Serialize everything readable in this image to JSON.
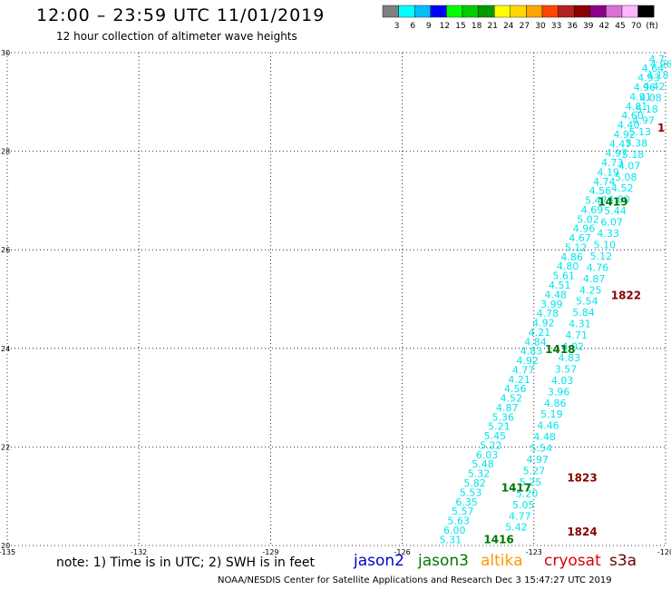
{
  "header": {
    "title": "12:00 – 23:59 UTC 11/01/2019",
    "subtitle": "12 hour collection of altimeter wave heights"
  },
  "colorbar": {
    "labels": [
      "3",
      "6",
      "9",
      "12",
      "15",
      "18",
      "21",
      "24",
      "27",
      "30",
      "33",
      "36",
      "39",
      "42",
      "45",
      "70",
      "(ft)"
    ],
    "colors": [
      "#7f7f7f",
      "#00ffff",
      "#00bfff",
      "#0000ff",
      "#00ff00",
      "#00cc00",
      "#009900",
      "#ffff00",
      "#ffd700",
      "#ffa500",
      "#ff4500",
      "#b22222",
      "#8b0000",
      "#8b008b",
      "#da70d6",
      "#ffb6ff",
      "#000000"
    ]
  },
  "footer": {
    "note": "note:  1) Time is in UTC;  2) SWH is in feet",
    "credit": "NOAA/NESDIS Center for Satellite Applications and Research    Dec  3 15:47:27 UTC 2019"
  },
  "legend": [
    {
      "name": "jason2",
      "color": "#0000cc"
    },
    {
      "name": "jason3",
      "color": "#007700"
    },
    {
      "name": "altika",
      "color": "#ff9900"
    },
    {
      "name": "cryosat",
      "color": "#dd0000"
    },
    {
      "name": "s3a",
      "color": "#660000"
    }
  ],
  "chart_data": {
    "type": "scatter",
    "title": "12:00 – 23:59 UTC 11/01/2019",
    "xlabel": "",
    "ylabel": "",
    "xlim": [
      -135,
      -120
    ],
    "ylim": [
      20,
      30
    ],
    "xticks": [
      -135,
      -132,
      -129,
      -126,
      -123,
      -120
    ],
    "xtick_labels": [
      "-135",
      "-132",
      "-129",
      "-126",
      "-123",
      "-120"
    ],
    "yticks": [
      20,
      22,
      24,
      26,
      28,
      30
    ],
    "ytick_labels": [
      "20",
      "22",
      "24",
      "26",
      "28",
      "30"
    ],
    "grid": true,
    "point_color": "#00e5ee",
    "tracks": [
      {
        "label": "1416",
        "label_color": "#007700",
        "label_x": -123.8,
        "label_y": 20.05,
        "x0": -124.9,
        "y0": 20.05,
        "x1": -120.2,
        "y1": 29.8,
        "values": [
          "5.31",
          "6.00",
          "5.63",
          "5.57",
          "6.35",
          "5.53",
          "5.82",
          "5.32",
          "5.48",
          "6.03",
          "5.22",
          "5.45",
          "5.21",
          "5.36",
          "4.87",
          "4.52",
          "4.56",
          "4.21",
          "4.77",
          "4.92",
          "4.83",
          "4.84",
          "4.21",
          "4.92",
          "4.78",
          "3.99",
          "4.48",
          "4.51",
          "5.61",
          "4.80",
          "4.86",
          "5.12",
          "4.67",
          "4.96",
          "5.02",
          "4.69",
          "5.47",
          "4.56",
          "4.74",
          "4.19",
          "4.73",
          "4.97",
          "4.47",
          "4.92",
          "4.40",
          "4.60",
          "4.81",
          "4.91",
          "4.96",
          "4.93",
          "4.64",
          "4.7"
        ]
      },
      {
        "label": "1417",
        "label_color": "#007700",
        "label_x": -123.4,
        "label_y": 21.1,
        "x0": -123.4,
        "y0": 20.3,
        "x1": -120.1,
        "y1": 29.7,
        "values": [
          "5.42",
          "4.77",
          "5.05",
          "5.20",
          "5.25",
          "5.27",
          "4.97",
          "5.54",
          "4.48",
          "4.46",
          "5.19",
          "4.86",
          "3.96",
          "4.03",
          "3.57",
          "4.83",
          "4.02",
          "4.71",
          "4.31",
          "5.84",
          "5.54",
          "4.25",
          "4.87",
          "4.76",
          "5.12",
          "5.10",
          "4.33",
          "6.07",
          "5.44",
          "4.80",
          "4.52",
          "5.08",
          "4.07",
          "5.18",
          "5.38",
          "5.13",
          "4.97",
          "5.18",
          "4.08",
          "4.42",
          "4.18",
          "4.96"
        ]
      },
      {
        "label": "1418",
        "label_color": "#007700",
        "label_x": -122.4,
        "label_y": 23.9,
        "x0": 0,
        "y0": 0,
        "x1": 0,
        "y1": 0,
        "values": []
      },
      {
        "label": "1419",
        "label_color": "#007700",
        "label_x": -121.2,
        "label_y": 26.9,
        "x0": 0,
        "y0": 0,
        "x1": 0,
        "y1": 0,
        "values": []
      },
      {
        "label": "1822",
        "label_color": "#880000",
        "label_x": -120.9,
        "label_y": 25.0,
        "x0": 0,
        "y0": 0,
        "x1": 0,
        "y1": 0,
        "values": []
      },
      {
        "label": "1823",
        "label_color": "#880000",
        "label_x": -121.9,
        "label_y": 21.3,
        "x0": 0,
        "y0": 0,
        "x1": 0,
        "y1": 0,
        "values": []
      },
      {
        "label": "1824",
        "label_color": "#880000",
        "label_x": -121.9,
        "label_y": 20.2,
        "x0": 0,
        "y0": 0,
        "x1": 0,
        "y1": 0,
        "values": []
      },
      {
        "label": "1",
        "label_color": "#880000",
        "label_x": -120.1,
        "label_y": 28.4,
        "x0": 0,
        "y0": 0,
        "x1": 0,
        "y1": 0,
        "values": []
      }
    ]
  }
}
